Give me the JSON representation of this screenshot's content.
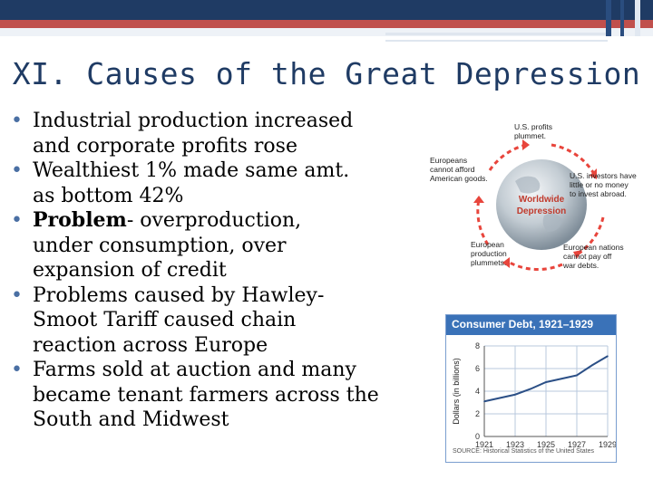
{
  "slide": {
    "title": "XI. Causes of the Great Depression",
    "bullets": [
      {
        "lines": [
          "Industrial production increased",
          "and corporate profits rose"
        ]
      },
      {
        "lines": [
          "Wealthiest 1% made same amt.",
          "as bottom 42%"
        ]
      },
      {
        "bold": "Problem",
        "rest_first": "- overproduction,",
        "lines_rest": [
          "under consumption, over",
          "expansion of credit"
        ]
      },
      {
        "lines": [
          "Problems caused by Hawley-",
          "Smoot Tariff caused chain",
          "reaction across Europe"
        ]
      },
      {
        "lines": [
          "Farms sold at auction and many",
          "became tenant farmers across the",
          "South and Midwest"
        ]
      }
    ]
  },
  "cycle": {
    "center_lines": [
      "Worldwide",
      "Depression"
    ],
    "labels": {
      "top": [
        "U.S. profits",
        "plummet."
      ],
      "right": [
        "U.S. investors have",
        "little or no money",
        "to invest abroad."
      ],
      "bottom_right": [
        "European nations",
        "cannot pay off",
        "war debts."
      ],
      "bottom_left": [
        "European",
        "production",
        "plummets."
      ],
      "left": [
        "Europeans",
        "cannot afford",
        "American goods."
      ]
    },
    "colors": {
      "arrow": "#e8453c",
      "globe": "#9aa9b5",
      "center_text": "#c0392b"
    }
  },
  "debt_chart": {
    "title": "Consumer Debt, 1921–1929",
    "source": "SOURCE: Historical Statistics of the United States",
    "chart_data": {
      "type": "line",
      "title": "Consumer Debt, 1921–1929",
      "xlabel": "",
      "ylabel": "Dollars (in billions)",
      "x": [
        1921,
        1922,
        1923,
        1924,
        1925,
        1926,
        1927,
        1928,
        1929
      ],
      "xticks": [
        "1921",
        "1923",
        "1925",
        "1927",
        "1929"
      ],
      "yticks": [
        "0",
        "2",
        "4",
        "6",
        "8"
      ],
      "ylim": [
        0,
        8
      ],
      "xlim": [
        1921,
        1929
      ],
      "series": [
        {
          "values": [
            3.1,
            3.4,
            3.7,
            4.2,
            4.8,
            5.1,
            5.4,
            6.3,
            7.1
          ]
        }
      ],
      "grid": true,
      "colors": {
        "line": "#2b4f86",
        "grid": "#b9c9de",
        "header": "#3a72b8"
      }
    }
  }
}
